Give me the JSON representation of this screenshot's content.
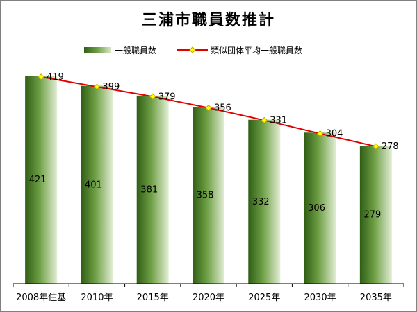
{
  "chart_data": {
    "type": "bar",
    "title": "三浦市職員数推計",
    "categories": [
      "2008年住基",
      "2010年",
      "2015年",
      "2020年",
      "2025年",
      "2030年",
      "2035年"
    ],
    "series": [
      {
        "name": "一般職員数",
        "type": "bar",
        "values": [
          421,
          401,
          381,
          358,
          332,
          306,
          279
        ]
      },
      {
        "name": "類似団体平均一般職員数",
        "type": "line",
        "values": [
          419,
          399,
          379,
          356,
          331,
          304,
          278
        ]
      }
    ],
    "ylim": [
      0,
      430
    ],
    "grid": false,
    "legend_position": "top",
    "colors": {
      "bar_dark": "#2f5e14",
      "bar_mid": "#6e9f45",
      "bar_light": "#e3eed6",
      "line": "#e00000",
      "marker_fill": "#ffff00",
      "marker_stroke": "#c8a000",
      "axis": "#000000"
    }
  }
}
